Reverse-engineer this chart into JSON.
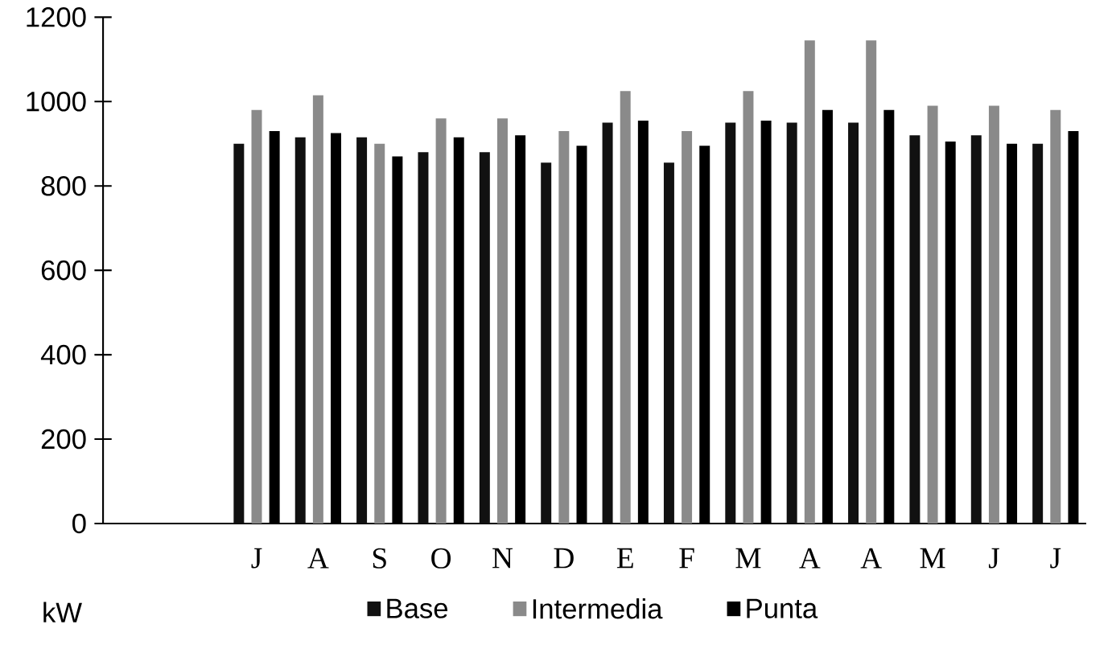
{
  "chart_data": {
    "type": "bar",
    "categories": [
      null,
      null,
      "J",
      "A",
      "S",
      "O",
      "N",
      "D",
      "E",
      "F",
      "M",
      "A",
      "A",
      "M",
      "J",
      "J"
    ],
    "series": [
      {
        "name": "Base",
        "color": "#111111",
        "values": [
          null,
          null,
          900,
          915,
          915,
          880,
          880,
          855,
          950,
          855,
          950,
          950,
          950,
          920,
          920,
          900
        ]
      },
      {
        "name": "Intermedia",
        "color": "#8a8a8a",
        "values": [
          null,
          null,
          980,
          1015,
          900,
          960,
          960,
          930,
          1025,
          930,
          1025,
          1145,
          1145,
          990,
          990,
          980
        ]
      },
      {
        "name": "Punta",
        "color": "#000000",
        "values": [
          null,
          null,
          930,
          925,
          870,
          915,
          920,
          895,
          955,
          895,
          955,
          980,
          980,
          905,
          900,
          930
        ]
      }
    ],
    "ylim": [
      0,
      1200
    ],
    "yticks": [
      0,
      200,
      400,
      600,
      800,
      1000,
      1200
    ],
    "grid": false,
    "legend": "bottom",
    "annotations": [
      "kW"
    ]
  }
}
